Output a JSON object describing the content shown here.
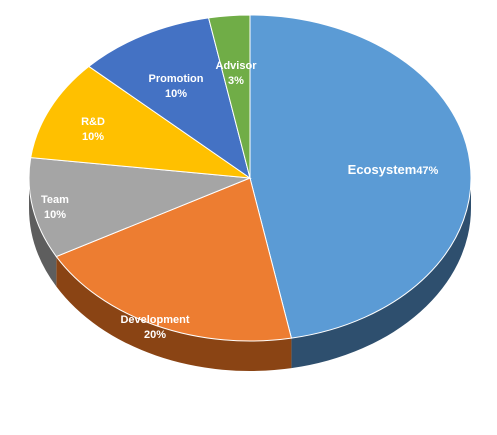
{
  "chart_data": {
    "type": "pie",
    "style": "3d",
    "title": "",
    "show_legend": false,
    "slices": [
      {
        "label": "Ecosystem",
        "value": 47,
        "display": "47%",
        "color": "#5b9bd5",
        "side": "#2e4f6e"
      },
      {
        "label": "Development",
        "value": 20,
        "display": "20%",
        "color": "#ed7d31",
        "side": "#8a4414"
      },
      {
        "label": "Team",
        "value": 10,
        "display": "10%",
        "color": "#a5a5a5",
        "side": "#5e5e5e"
      },
      {
        "label": "R&D",
        "value": 10,
        "display": "10%",
        "color": "#ffc000",
        "side": "#8f6b00"
      },
      {
        "label": "Promotion",
        "value": 10,
        "display": "10%",
        "color": "#4472c4",
        "side": "#24406f"
      },
      {
        "label": "Advisor",
        "value": 3,
        "display": "3%",
        "color": "#70ad47",
        "side": "#3c6126"
      }
    ]
  }
}
